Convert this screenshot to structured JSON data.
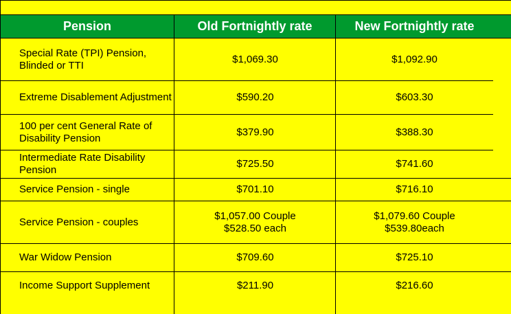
{
  "table": {
    "headers": [
      "Pension",
      "Old Fortnightly rate",
      "New Fortnightly rate"
    ],
    "rows": [
      {
        "label": "Special Rate (TPI) Pension, Blinded or TTI",
        "old": "$1,069.30",
        "new": "$1,092.90"
      },
      {
        "label": "Extreme Disablement Adjustment",
        "old": "$590.20",
        "new": "$603.30"
      },
      {
        "label": "100 per cent General Rate of Disability Pension",
        "old": "$379.90",
        "new": "$388.30"
      },
      {
        "label": "Intermediate Rate Disability Pension",
        "old": "$725.50",
        "new": "$741.60"
      },
      {
        "label": "Service Pension - single",
        "old": "$701.10",
        "new": "$716.10"
      },
      {
        "label": "Service Pension - couples",
        "old": "$1,057.00 Couple $528.50 each",
        "new": "$1,079.60 Couple $539.80each"
      },
      {
        "label": "War Widow Pension",
        "old": "$709.60",
        "new": "$725.10"
      },
      {
        "label": "Income Support Supplement",
        "old": "$211.90",
        "new": "$216.60"
      }
    ]
  },
  "colors": {
    "background": "#ffff00",
    "header_background": "#009a2e",
    "header_text": "#ffffff"
  }
}
